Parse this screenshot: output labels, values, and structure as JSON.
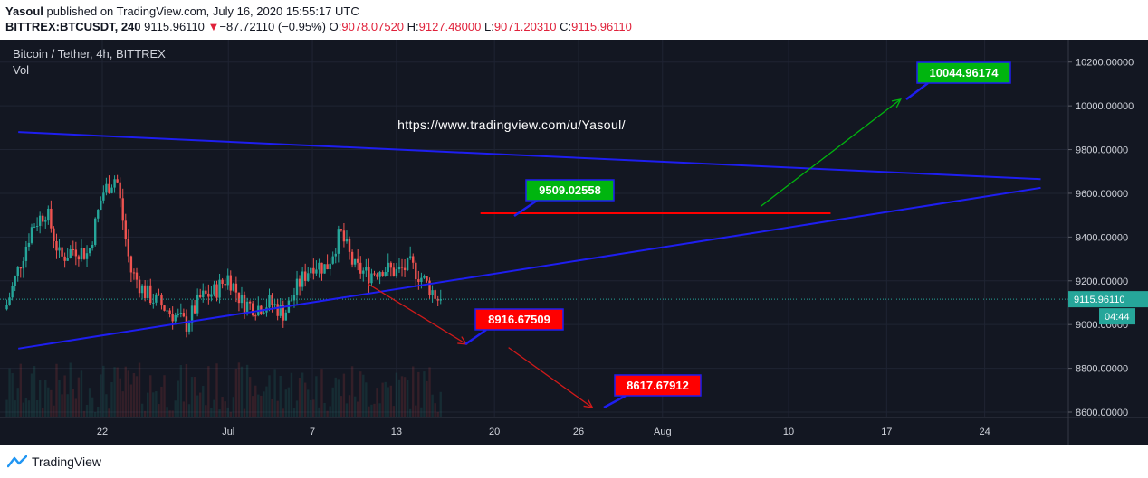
{
  "header": {
    "author": "Yasoul",
    "published_text": "published on TradingView.com, July 16, 2020 15:55:17 UTC",
    "symbol": "BITTREX:BTCUSDT, 240",
    "last": "9115.96110",
    "change_arrow": "▼",
    "change": "−87.72110 (−0.95%)",
    "o_label": "O:",
    "o_value": "9078.07520",
    "h_label": "H:",
    "h_value": "9127.48000",
    "l_label": "L:",
    "l_value": "9071.20310",
    "c_label": "C:",
    "c_value": "9115.96110"
  },
  "legend": {
    "title": "Bitcoin / Tether, 4h, BITTREX",
    "volume": "Vol"
  },
  "watermark_url": "https://www.tradingview.com/u/Yasoul/",
  "footer": {
    "brand": "TradingView",
    "logo_icon": "tradingview-logo-icon"
  },
  "colors": {
    "background": "#131722",
    "up": "#26a69a",
    "down": "#ef5350",
    "trendline": "#1e1ef0",
    "target_green": "#00b50f",
    "target_red": "#ff0000",
    "price_line": "#26a69a"
  },
  "chart_data": {
    "type": "candlestick",
    "ylim": [
      8580,
      10400
    ],
    "y_ticks": [
      "8600.00000",
      "8800.00000",
      "9000.00000",
      "9200.00000",
      "9400.00000",
      "9600.00000",
      "9800.00000",
      "10000.00000",
      "10200.00000"
    ],
    "x_ticks": [
      "22",
      "Jul",
      "7",
      "13",
      "20",
      "26",
      "Aug",
      "10",
      "17",
      "24"
    ],
    "current_price": "9115.96110",
    "countdown": "04:44",
    "price_path": [
      {
        "date": "2020-06-17",
        "price": 9450
      },
      {
        "date": "2020-06-18",
        "price": 9520
      },
      {
        "date": "2020-06-19",
        "price": 9300
      },
      {
        "date": "2020-06-20",
        "price": 9350
      },
      {
        "date": "2020-06-21",
        "price": 9320
      },
      {
        "date": "2020-06-22",
        "price": 9600
      },
      {
        "date": "2020-06-23",
        "price": 9680
      },
      {
        "date": "2020-06-24",
        "price": 9250
      },
      {
        "date": "2020-06-25",
        "price": 9150
      },
      {
        "date": "2020-06-26",
        "price": 9100
      },
      {
        "date": "2020-06-27",
        "price": 9050
      },
      {
        "date": "2020-06-28",
        "price": 9000
      },
      {
        "date": "2020-06-29",
        "price": 9120
      },
      {
        "date": "2020-06-30",
        "price": 9150
      },
      {
        "date": "2020-07-01",
        "price": 9220
      },
      {
        "date": "2020-07-02",
        "price": 9100
      },
      {
        "date": "2020-07-03",
        "price": 9080
      },
      {
        "date": "2020-07-04",
        "price": 9100
      },
      {
        "date": "2020-07-05",
        "price": 9050
      },
      {
        "date": "2020-07-06",
        "price": 9180
      },
      {
        "date": "2020-07-07",
        "price": 9280
      },
      {
        "date": "2020-07-08",
        "price": 9260
      },
      {
        "date": "2020-07-09",
        "price": 9420
      },
      {
        "date": "2020-07-10",
        "price": 9260
      },
      {
        "date": "2020-07-11",
        "price": 9230
      },
      {
        "date": "2020-07-12",
        "price": 9260
      },
      {
        "date": "2020-07-13",
        "price": 9240
      },
      {
        "date": "2020-07-14",
        "price": 9270
      },
      {
        "date": "2020-07-15",
        "price": 9200
      },
      {
        "date": "2020-07-16",
        "price": 9116
      }
    ],
    "trendlines": [
      {
        "name": "upper",
        "from": {
          "date": "2020-06-16",
          "price": 9880
        },
        "to": {
          "date": "2020-08-28",
          "price": 9665
        }
      },
      {
        "name": "lower",
        "from": {
          "date": "2020-06-16",
          "price": 8890
        },
        "to": {
          "date": "2020-08-28",
          "price": 9625
        }
      }
    ],
    "horizontal_line": {
      "price": 9509.02558,
      "from_date": "2020-07-19",
      "to_date": "2020-08-13"
    },
    "targets": [
      {
        "name": "target-up",
        "label": "10044.96174",
        "color": "green",
        "arrow_from": {
          "date": "2020-08-08",
          "price": 9540
        },
        "arrow_to": {
          "date": "2020-08-18",
          "price": 10030
        }
      },
      {
        "name": "target-level",
        "label": "9509.02558",
        "color": "green"
      },
      {
        "name": "target-down-1",
        "label": "8916.67509",
        "color": "red",
        "arrow_from": {
          "date": "2020-07-11",
          "price": 9185
        },
        "arrow_to": {
          "date": "2020-07-18",
          "price": 8910
        }
      },
      {
        "name": "target-down-2",
        "label": "8617.67912",
        "color": "red",
        "arrow_from": {
          "date": "2020-07-21",
          "price": 8895
        },
        "arrow_to": {
          "date": "2020-07-27",
          "price": 8620
        }
      }
    ]
  }
}
